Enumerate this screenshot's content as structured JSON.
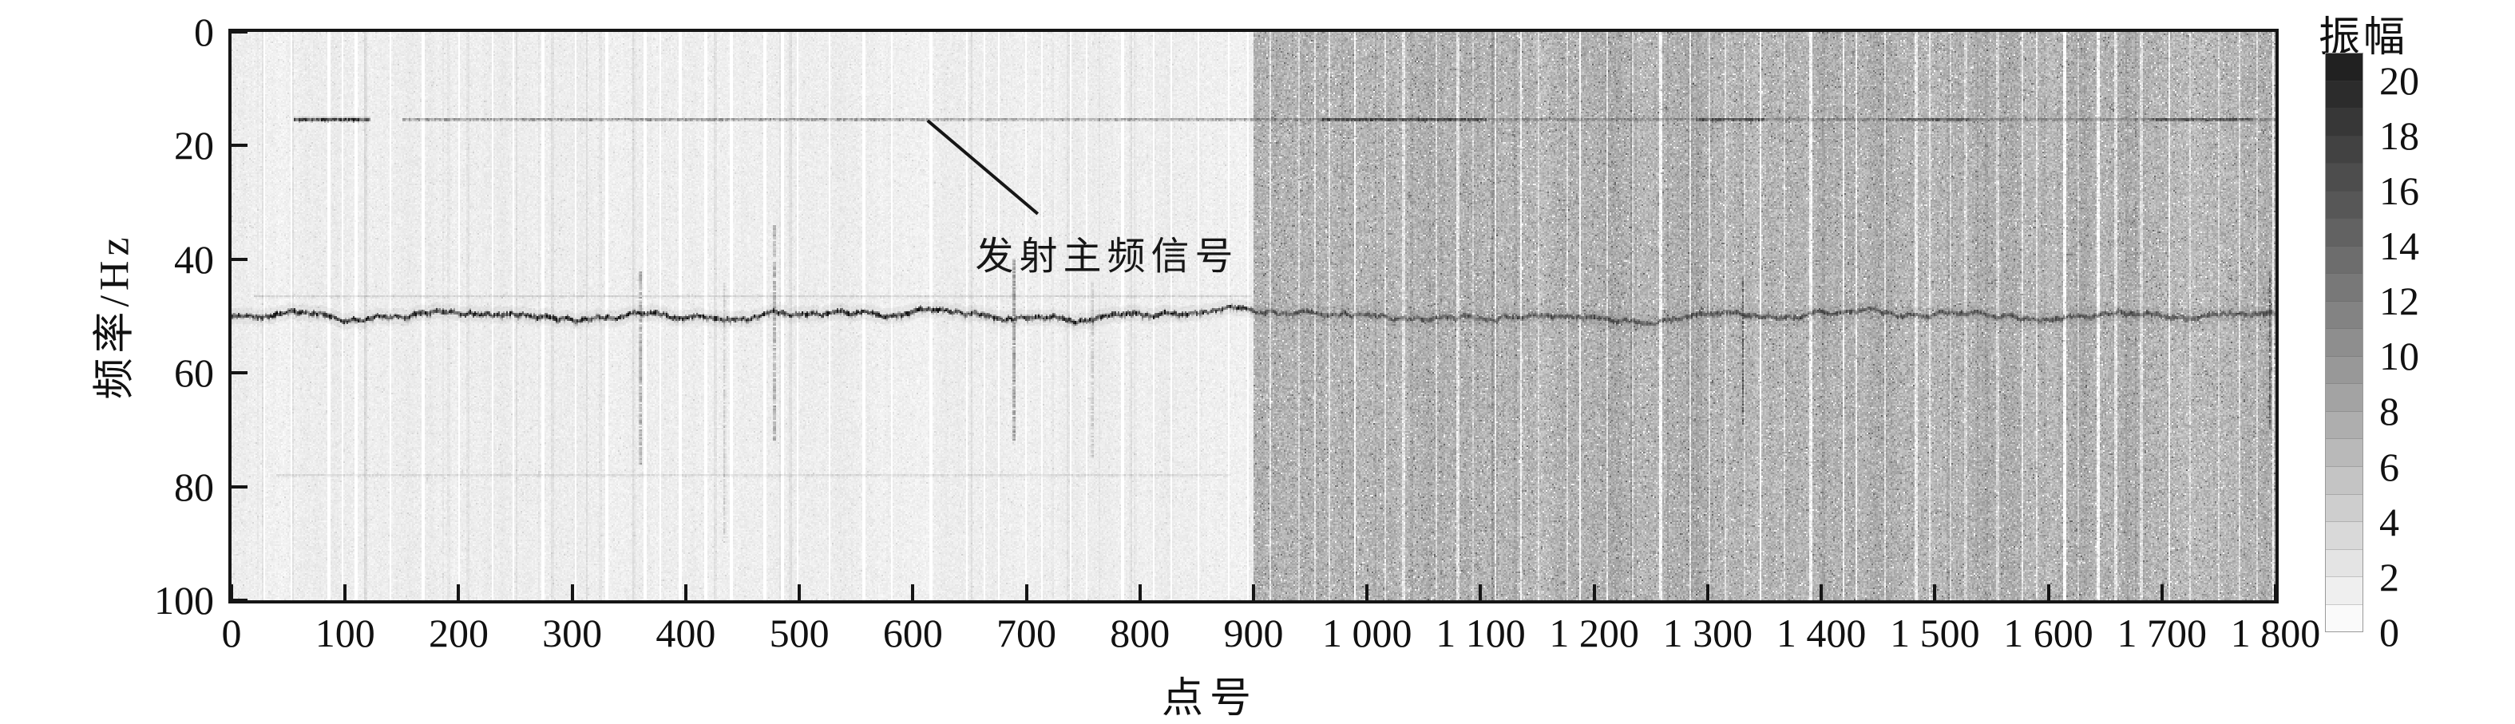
{
  "chart_data": {
    "type": "heatmap",
    "subtype": "spectrogram",
    "title": "",
    "xlabel": "点号",
    "ylabel": "频率/Hz",
    "grid": false,
    "xlim": [
      0,
      1800
    ],
    "ylim": [
      0,
      100
    ],
    "y_axis_inverted": true,
    "x_tick_values": [
      0,
      100,
      200,
      300,
      400,
      500,
      600,
      700,
      800,
      900,
      1000,
      1100,
      1200,
      1300,
      1400,
      1500,
      1600,
      1700,
      1800
    ],
    "x_tick_labels": [
      "0",
      "100",
      "200",
      "300",
      "400",
      "500",
      "600",
      "700",
      "800",
      "900",
      "1 000",
      "1 100",
      "1 200",
      "1 300",
      "1 400",
      "1 500",
      "1 600",
      "1 700",
      "1 800"
    ],
    "y_tick_values": [
      0,
      20,
      40,
      60,
      80,
      100
    ],
    "y_tick_labels": [
      "0",
      "20",
      "40",
      "60",
      "80",
      "100"
    ],
    "colorbar": {
      "label": "振幅",
      "min": 0,
      "max": 21,
      "segments": 21,
      "tick_values": [
        20,
        18,
        16,
        14,
        12,
        10,
        8,
        6,
        4,
        2,
        0
      ],
      "tick_labels": [
        "20",
        "18",
        "16",
        "14",
        "12",
        "10",
        "8",
        "6",
        "4",
        "2",
        "0"
      ],
      "color_min": "#ffffff",
      "color_max": "#1c1c1c"
    },
    "regions": [
      {
        "name": "quiet-section",
        "x_from": 0,
        "x_to": 900,
        "mean_amplitude": 1.5,
        "noise_spread": 1.2
      },
      {
        "name": "noisy-section",
        "x_from": 900,
        "x_to": 1800,
        "mean_amplitude": 6.5,
        "noise_spread": 3.0
      }
    ],
    "features": {
      "horizontal_lines": [
        {
          "name": "transmit-main-frequency-line",
          "f_hz": 15.4,
          "segments": [
            {
              "x_from": 55,
              "x_to": 122,
              "strength": 0.8,
              "thickness": 4.0
            },
            {
              "x_from": 150,
              "x_to": 612,
              "strength": 0.5,
              "thickness": 2.6
            },
            {
              "x_from": 612,
              "x_to": 900,
              "strength": 0.45,
              "thickness": 2.4
            },
            {
              "x_from": 900,
              "x_to": 1800,
              "strength": 0.4,
              "thickness": 2.2
            },
            {
              "x_from": 960,
              "x_to": 1105,
              "strength": 0.62,
              "thickness": 3.0
            },
            {
              "x_from": 1290,
              "x_to": 1350,
              "strength": 0.55,
              "thickness": 3.0
            },
            {
              "x_from": 1470,
              "x_to": 1530,
              "strength": 0.5,
              "thickness": 3.0
            },
            {
              "x_from": 1690,
              "x_to": 1780,
              "strength": 0.52,
              "thickness": 3.0
            }
          ]
        },
        {
          "name": "powerline-50hz-band",
          "f_hz": 50,
          "x_from": 0,
          "x_to": 1800,
          "wavy": true,
          "wobble_hz": 1.7,
          "thickness": 4.5,
          "strength_left": 0.82,
          "strength_right": 0.52,
          "halo": true
        },
        {
          "name": "faint-line-46hz",
          "f_hz": 46.5,
          "x_from": 20,
          "x_to": 898,
          "strength": 0.13,
          "thickness": 2.4,
          "segments": []
        },
        {
          "name": "faint-line-78hz",
          "f_hz": 78,
          "x_from": 40,
          "x_to": 880,
          "strength": 0.11,
          "thickness": 2.4,
          "segments": []
        }
      ],
      "vertical_streaks": [
        {
          "x": 360,
          "f_from": 42,
          "f_to": 76,
          "strength": 0.5
        },
        {
          "x": 434,
          "f_from": 44,
          "f_to": 90,
          "strength": 0.2
        },
        {
          "x": 478,
          "f_from": 34,
          "f_to": 72,
          "strength": 0.5
        },
        {
          "x": 689,
          "f_from": 40,
          "f_to": 72,
          "strength": 0.65
        },
        {
          "x": 758,
          "f_from": 44,
          "f_to": 75,
          "strength": 0.25
        },
        {
          "x": 1331,
          "f_from": 43,
          "f_to": 69,
          "strength": 0.6
        },
        {
          "x": 1795,
          "f_from": 42,
          "f_to": 70,
          "strength": 0.55
        }
      ]
    },
    "annotation": {
      "text": "发射主频信号",
      "leader": {
        "x1": 613,
        "f1": 15.6,
        "x2": 710,
        "f2": 32.0
      },
      "label_anchor": {
        "x": 655,
        "f": 33.8
      }
    }
  }
}
